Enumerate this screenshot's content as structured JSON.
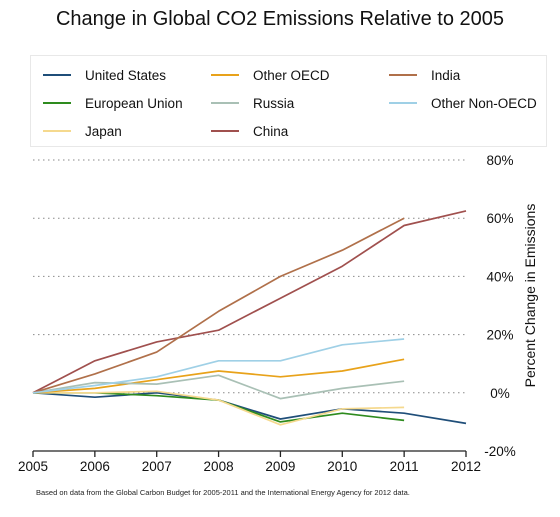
{
  "chart_data": {
    "type": "line",
    "title": "Change in Global CO2 Emissions Relative to 2005",
    "xlabel": "",
    "ylabel": "Percent Change in Emissions",
    "x": [
      2005,
      2006,
      2007,
      2008,
      2009,
      2010,
      2011,
      2012
    ],
    "x_tick_labels": [
      "2005",
      "2006",
      "2007",
      "2008",
      "2009",
      "2010",
      "2011",
      "2012"
    ],
    "y_tick_labels": [
      "80%",
      "60%",
      "40%",
      "20%",
      "0%",
      "-20%"
    ],
    "ylim": [
      -20,
      80
    ],
    "y_ticks": [
      80,
      60,
      40,
      20,
      0,
      -20
    ],
    "grid": "horizontal dotted",
    "y_axis_position": "right",
    "legend_position": "top",
    "series": [
      {
        "name": "United States",
        "color": "#1f4e79",
        "values": [
          0,
          -1.5,
          0,
          -2.5,
          -9,
          -5.5,
          -7,
          -10.5
        ]
      },
      {
        "name": "European Union",
        "color": "#2e8b1e",
        "values": [
          0,
          0,
          -1,
          -2.5,
          -10,
          -7,
          -9.5,
          null
        ]
      },
      {
        "name": "Japan",
        "color": "#f5d98e",
        "values": [
          0,
          0,
          0.5,
          -2.5,
          -11,
          -5.5,
          -5,
          null
        ]
      },
      {
        "name": "Other OECD",
        "color": "#e8a21a",
        "values": [
          0,
          1.5,
          4.5,
          7.5,
          5.5,
          7.5,
          11.5,
          null
        ]
      },
      {
        "name": "Russia",
        "color": "#a9c0b5",
        "values": [
          0,
          3.5,
          3,
          6,
          -2,
          1.5,
          4,
          null
        ]
      },
      {
        "name": "China",
        "color": "#a0504e",
        "values": [
          0,
          11,
          17.5,
          21.5,
          32.5,
          43.5,
          57.5,
          62.5
        ]
      },
      {
        "name": "India",
        "color": "#b0704a",
        "values": [
          0,
          6.5,
          14,
          28,
          40,
          49,
          60,
          null
        ]
      },
      {
        "name": "Other Non-OECD",
        "color": "#9fd0e6",
        "values": [
          0,
          2.5,
          5.5,
          11,
          11,
          16.5,
          18.5,
          null
        ]
      }
    ]
  },
  "legend": {
    "items": [
      {
        "name": "United States",
        "color": "#1f4e79"
      },
      {
        "name": "European Union",
        "color": "#2e8b1e"
      },
      {
        "name": "Japan",
        "color": "#f5d98e"
      },
      {
        "name": "Other OECD",
        "color": "#e8a21a"
      },
      {
        "name": "Russia",
        "color": "#a9c0b5"
      },
      {
        "name": "China",
        "color": "#a0504e"
      },
      {
        "name": "India",
        "color": "#b0704a"
      },
      {
        "name": "Other Non-OECD",
        "color": "#9fd0e6"
      }
    ]
  },
  "footnote": "Based on data from the Global Carbon Budget for 2005-2011 and the International Energy Agency for 2012 data."
}
